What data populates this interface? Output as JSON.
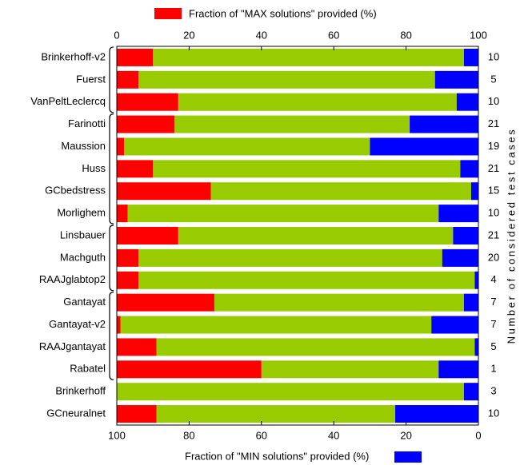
{
  "chart_data": {
    "type": "bar",
    "orientation": "horizontal",
    "stacked": true,
    "categories": [
      "Brinkerhoff-v2",
      "Fuerst",
      "VanPeltLeclercq",
      "Farinotti",
      "Maussion",
      "Huss",
      "GCbedstress",
      "Morlighem",
      "Linsbauer",
      "Machguth",
      "RAAJglabtop2",
      "Gantayat",
      "Gantayat-v2",
      "RAAJgantayat",
      "Rabatel",
      "Brinkerhoff",
      "GCneuralnet"
    ],
    "series": [
      {
        "name": "Fraction of \"MAX solutions\" provided (%)",
        "color": "#ff0000",
        "axis": "x",
        "values": [
          10,
          6,
          17,
          16,
          2,
          10,
          26,
          3,
          17,
          6,
          6,
          27,
          1,
          11,
          40,
          0,
          11
        ]
      },
      {
        "color": "#99cc00",
        "axis": "x",
        "values": [
          86,
          82,
          77,
          65,
          68,
          85,
          72,
          86,
          76,
          84,
          93,
          69,
          86,
          88,
          49,
          96,
          66
        ]
      },
      {
        "name": "Fraction of \"MIN solutions\" provided (%)",
        "color": "#0000ff",
        "axis": "x2",
        "values": [
          4,
          12,
          6,
          19,
          30,
          5,
          2,
          11,
          7,
          10,
          1,
          4,
          13,
          1,
          11,
          4,
          23
        ]
      }
    ],
    "xlim": [
      0,
      100
    ],
    "xticks": [
      0,
      20,
      40,
      60,
      80,
      100
    ],
    "x2lim": [
      100,
      0
    ],
    "x2ticks": [
      100,
      80,
      60,
      40,
      20,
      0
    ],
    "right_axis_label": "Number of considered test cases",
    "right_labels": [
      10,
      5,
      10,
      21,
      19,
      21,
      15,
      10,
      21,
      20,
      4,
      7,
      7,
      5,
      1,
      3,
      10
    ]
  }
}
